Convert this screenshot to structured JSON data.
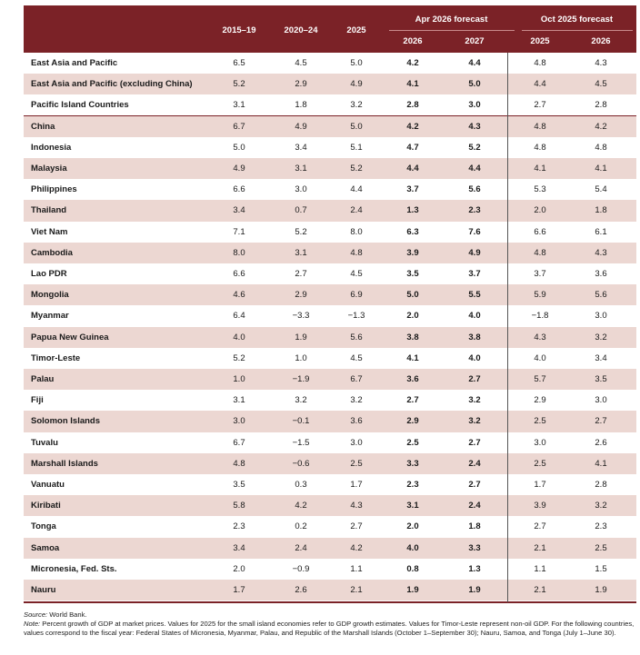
{
  "header": {
    "col_2015_19": "2015–19",
    "col_2020_24": "2020–24",
    "col_2025": "2025",
    "apr_group": "Apr 2026 forecast",
    "apr_2026": "2026",
    "apr_2027": "2027",
    "oct_group": "Oct 2025 forecast",
    "oct_2025": "2025",
    "oct_2026": "2026"
  },
  "rows": [
    {
      "name": "East Asia and Pacific",
      "v": [
        "6.5",
        "4.5",
        "5.0",
        "4.2",
        "4.4",
        "4.8",
        "4.3"
      ]
    },
    {
      "name": "East Asia and Pacific (excluding China)",
      "v": [
        "5.2",
        "2.9",
        "4.9",
        "4.1",
        "5.0",
        "4.4",
        "4.5"
      ]
    },
    {
      "name": "Pacific Island Countries",
      "v": [
        "3.1",
        "1.8",
        "3.2",
        "2.8",
        "3.0",
        "2.7",
        "2.8"
      ]
    },
    {
      "name": "China",
      "v": [
        "6.7",
        "4.9",
        "5.0",
        "4.2",
        "4.3",
        "4.8",
        "4.2"
      ]
    },
    {
      "name": "Indonesia",
      "v": [
        "5.0",
        "3.4",
        "5.1",
        "4.7",
        "5.2",
        "4.8",
        "4.8"
      ]
    },
    {
      "name": "Malaysia",
      "v": [
        "4.9",
        "3.1",
        "5.2",
        "4.4",
        "4.4",
        "4.1",
        "4.1"
      ]
    },
    {
      "name": "Philippines",
      "v": [
        "6.6",
        "3.0",
        "4.4",
        "3.7",
        "5.6",
        "5.3",
        "5.4"
      ]
    },
    {
      "name": "Thailand",
      "v": [
        "3.4",
        "0.7",
        "2.4",
        "1.3",
        "2.3",
        "2.0",
        "1.8"
      ]
    },
    {
      "name": "Viet Nam",
      "v": [
        "7.1",
        "5.2",
        "8.0",
        "6.3",
        "7.6",
        "6.6",
        "6.1"
      ]
    },
    {
      "name": "Cambodia",
      "v": [
        "8.0",
        "3.1",
        "4.8",
        "3.9",
        "4.9",
        "4.8",
        "4.3"
      ]
    },
    {
      "name": "Lao PDR",
      "v": [
        "6.6",
        "2.7",
        "4.5",
        "3.5",
        "3.7",
        "3.7",
        "3.6"
      ]
    },
    {
      "name": "Mongolia",
      "v": [
        "4.6",
        "2.9",
        "6.9",
        "5.0",
        "5.5",
        "5.9",
        "5.6"
      ]
    },
    {
      "name": "Myanmar",
      "v": [
        "6.4",
        "−3.3",
        "−1.3",
        "2.0",
        "4.0",
        "−1.8",
        "3.0"
      ]
    },
    {
      "name": "Papua New Guinea",
      "v": [
        "4.0",
        "1.9",
        "5.6",
        "3.8",
        "3.8",
        "4.3",
        "3.2"
      ]
    },
    {
      "name": "Timor-Leste",
      "v": [
        "5.2",
        "1.0",
        "4.5",
        "4.1",
        "4.0",
        "4.0",
        "3.4"
      ]
    },
    {
      "name": "Palau",
      "v": [
        "1.0",
        "−1.9",
        "6.7",
        "3.6",
        "2.7",
        "5.7",
        "3.5"
      ]
    },
    {
      "name": "Fiji",
      "v": [
        "3.1",
        "3.2",
        "3.2",
        "2.7",
        "3.2",
        "2.9",
        "3.0"
      ]
    },
    {
      "name": "Solomon Islands",
      "v": [
        "3.0",
        "−0.1",
        "3.6",
        "2.9",
        "3.2",
        "2.5",
        "2.7"
      ]
    },
    {
      "name": "Tuvalu",
      "v": [
        "6.7",
        "−1.5",
        "3.0",
        "2.5",
        "2.7",
        "3.0",
        "2.6"
      ]
    },
    {
      "name": "Marshall Islands",
      "v": [
        "4.8",
        "−0.6",
        "2.5",
        "3.3",
        "2.4",
        "2.5",
        "4.1"
      ]
    },
    {
      "name": "Vanuatu",
      "v": [
        "3.5",
        "0.3",
        "1.7",
        "2.3",
        "2.7",
        "1.7",
        "2.8"
      ]
    },
    {
      "name": "Kiribati",
      "v": [
        "5.8",
        "4.2",
        "4.3",
        "3.1",
        "2.4",
        "3.9",
        "3.2"
      ]
    },
    {
      "name": "Tonga",
      "v": [
        "2.3",
        "0.2",
        "2.7",
        "2.0",
        "1.8",
        "2.7",
        "2.3"
      ]
    },
    {
      "name": "Samoa",
      "v": [
        "3.4",
        "2.4",
        "4.2",
        "4.0",
        "3.3",
        "2.1",
        "2.5"
      ]
    },
    {
      "name": "Micronesia, Fed. Sts.",
      "v": [
        "2.0",
        "−0.9",
        "1.1",
        "0.8",
        "1.3",
        "1.1",
        "1.5"
      ]
    },
    {
      "name": "Nauru",
      "v": [
        "1.7",
        "2.6",
        "2.1",
        "1.9",
        "1.9",
        "2.1",
        "1.9"
      ]
    }
  ],
  "notes": {
    "source_label": "Source:",
    "source_text": " World Bank.",
    "note_label": "Note:",
    "note_text": " Percent growth of GDP at market prices. Values for 2025 for the small island economies refer to GDP growth estimates. Values for Timor-Leste represent non-oil GDP. For the following countries, values correspond to the fiscal year: Federal States of Micronesia, Myanmar, Palau, and Republic of the Marshall Islands (October 1–September 30); Nauru, Samoa, and Tonga (July 1–June 30)."
  },
  "colors": {
    "header_bg": "#7b2227",
    "shade": "#ecd7d2"
  }
}
